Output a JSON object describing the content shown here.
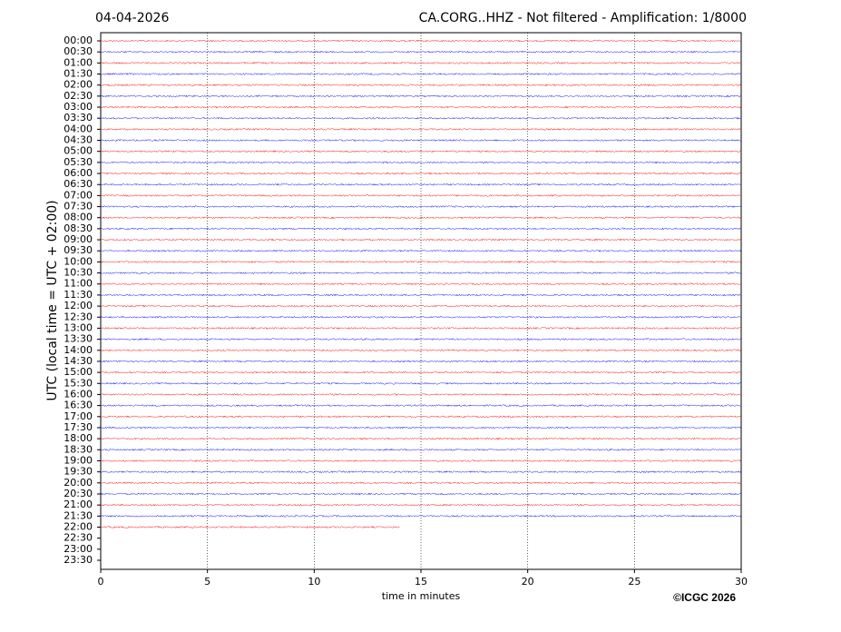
{
  "chart_data": {
    "type": "helicorder",
    "title": "04-04-2026",
    "subtitle": "CA.CORG..HHZ - Not filtered - Amplification: 1/8000",
    "x_label": "time in minutes",
    "y_label": "UTC (local time = UTC + 02:00)",
    "annotation": "©ICGC 2026",
    "categories": [
      "00:00",
      "00:30",
      "01:00",
      "01:30",
      "02:00",
      "02:30",
      "03:00",
      "03:30",
      "04:00",
      "04:30",
      "05:00",
      "05:30",
      "06:00",
      "06:30",
      "07:00",
      "07:30",
      "08:00",
      "08:30",
      "09:00",
      "09:30",
      "10:00",
      "10:30",
      "11:00",
      "11:30",
      "12:00",
      "12:30",
      "13:00",
      "13:30",
      "14:00",
      "14:30",
      "15:00",
      "15:30",
      "16:00",
      "16:30",
      "17:00",
      "17:30",
      "18:00",
      "18:30",
      "19:00",
      "19:30",
      "20:00",
      "20:30",
      "21:00",
      "21:30",
      "22:00",
      "22:30",
      "23:00",
      "23:30"
    ],
    "values": [
      30,
      30,
      30,
      30,
      30,
      30,
      30,
      30,
      30,
      30,
      30,
      30,
      30,
      30,
      30,
      30,
      30,
      30,
      30,
      30,
      30,
      30,
      30,
      30,
      30,
      30,
      30,
      30,
      30,
      30,
      30,
      30,
      30,
      30,
      30,
      30,
      30,
      30,
      30,
      30,
      30,
      30,
      30,
      30,
      14,
      null,
      null,
      null
    ],
    "colors": [
      "#ff0000",
      "#0000ff"
    ],
    "xlim": [
      0,
      30
    ],
    "xticks": [
      0,
      5,
      10,
      15,
      20,
      25,
      30
    ],
    "grid": true
  }
}
